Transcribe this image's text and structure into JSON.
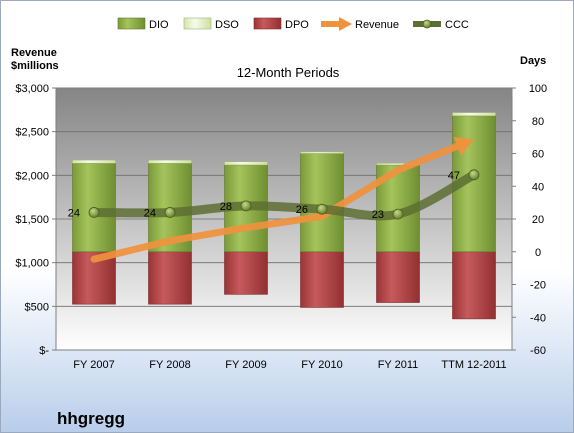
{
  "chart_data": {
    "type": "bar",
    "title": "12-Month Periods",
    "categories": [
      "FY 2007",
      "FY 2008",
      "FY 2009",
      "FY 2010",
      "FY 2011",
      "TTM 12-2011"
    ],
    "left_axis": {
      "title_line1": "Revenue",
      "title_line2": "$millions",
      "ylim": [
        0,
        3000
      ],
      "ticks": [
        0,
        500,
        1000,
        1500,
        2000,
        2500,
        3000
      ],
      "tick_labels": [
        "$-",
        "$500",
        "$1,000",
        "$1,500",
        "$2,000",
        "$2,500",
        "$3,000"
      ]
    },
    "right_axis": {
      "title": "Days",
      "ylim": [
        -60,
        100
      ],
      "ticks": [
        -60,
        -40,
        -20,
        0,
        20,
        40,
        60,
        80,
        100
      ],
      "tick_labels": [
        "-60",
        "-40",
        "-20",
        "0",
        "20",
        "40",
        "60",
        "80",
        "100"
      ]
    },
    "series": [
      {
        "name": "DIO",
        "type": "bar",
        "axis": "right",
        "color": "#8fb04a",
        "values": [
          54,
          54,
          53,
          60,
          53,
          83
        ]
      },
      {
        "name": "DSO",
        "type": "bar",
        "axis": "right",
        "color": "#e4efc8",
        "values": [
          2,
          2,
          2,
          1,
          1,
          2
        ]
      },
      {
        "name": "DPO",
        "type": "bar",
        "axis": "right",
        "color": "#b9484a",
        "values": [
          -32,
          -32,
          -26,
          -34,
          -31,
          -41
        ]
      },
      {
        "name": "Revenue",
        "type": "line",
        "axis": "left",
        "color": "#f0913d",
        "values": [
          1040,
          1250,
          1400,
          1530,
          2060,
          2410
        ]
      },
      {
        "name": "CCC",
        "type": "line",
        "axis": "right",
        "color": "#5d6e32",
        "values": [
          24,
          24,
          28,
          26,
          23,
          47
        ],
        "labels": [
          "24",
          "24",
          "28",
          "26",
          "23",
          "47"
        ]
      }
    ],
    "legend": {
      "position": "top",
      "items": [
        "DIO",
        "DSO",
        "DPO",
        "Revenue",
        "CCC"
      ]
    },
    "grid": true
  },
  "company": "hhgregg"
}
